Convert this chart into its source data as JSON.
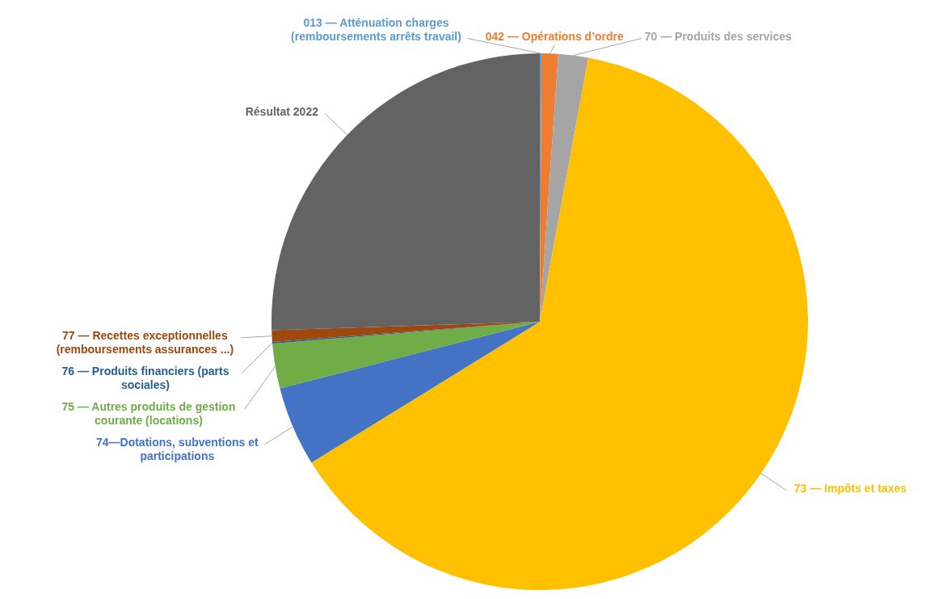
{
  "chart_data": {
    "type": "pie",
    "categories": [
      "013 — Atténuation charges (remboursements arrêts travail)",
      "042 — Opérations d’ordre",
      "70 — Produits des services",
      "73 — Impôts et taxes",
      "74—Dotations, subventions et participations",
      "75 — Autres produits de gestion courante (locations)",
      "76 — Produits financiers (parts sociales)",
      "77 — Recettes exceptionnelles (remboursements assurances ...)",
      "Résultat 2022"
    ],
    "values": [
      0.1,
      1,
      1.8,
      63.3,
      4.8,
      2.7,
      0.1,
      0.7,
      25.5
    ],
    "colors": [
      "#5b9bd5",
      "#ed7d31",
      "#a5a5a5",
      "#ffc000",
      "#4472c4",
      "#70ad47",
      "#255e91",
      "#9e480e",
      "#636363"
    ]
  }
}
